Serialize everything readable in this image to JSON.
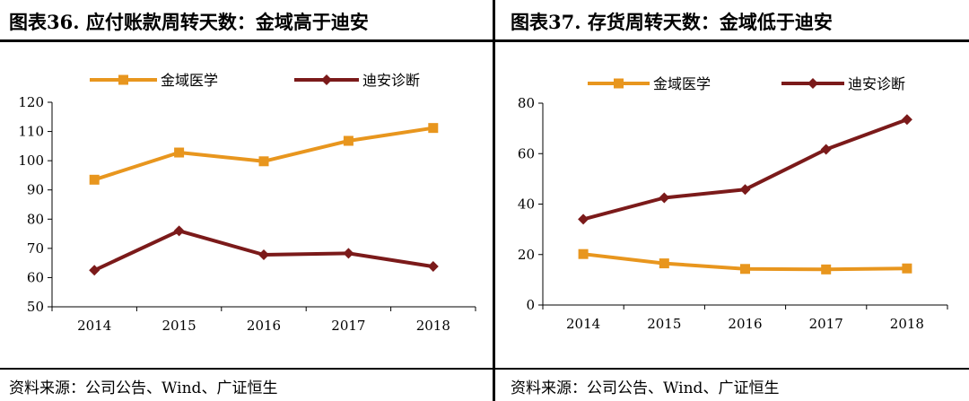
{
  "colors": {
    "orange": "#E8961E",
    "darkred": "#7B1A1A",
    "rule": "#000000"
  },
  "source": "资料来源：公司公告、Wind、广证恒生",
  "chart_data": [
    {
      "panel": "left",
      "type": "line",
      "title": "图表36.  应付账款周转天数：金域高于迪安",
      "categories": [
        "2014",
        "2015",
        "2016",
        "2017",
        "2018"
      ],
      "ylim": [
        50,
        120
      ],
      "yticks": [
        50,
        60,
        70,
        80,
        90,
        100,
        110,
        120
      ],
      "series": [
        {
          "name": "金域医学",
          "marker": "square",
          "color": "#E8961E",
          "values": [
            93.5,
            102.8,
            99.8,
            106.8,
            111.2
          ]
        },
        {
          "name": "迪安诊断",
          "marker": "diamond",
          "color": "#7B1A1A",
          "values": [
            62.5,
            76.0,
            67.8,
            68.3,
            63.8
          ]
        }
      ],
      "legend": "top",
      "grid": false
    },
    {
      "panel": "right",
      "type": "line",
      "title": "图表37.  存货周转天数：金域低于迪安",
      "categories": [
        "2014",
        "2015",
        "2016",
        "2017",
        "2018"
      ],
      "ylim": [
        0,
        80
      ],
      "yticks": [
        0,
        20,
        40,
        60,
        80
      ],
      "series": [
        {
          "name": "金域医学",
          "marker": "square",
          "color": "#E8961E",
          "values": [
            20.2,
            16.5,
            14.3,
            14.1,
            14.5
          ]
        },
        {
          "name": "迪安诊断",
          "marker": "diamond",
          "color": "#7B1A1A",
          "values": [
            34.0,
            42.5,
            45.8,
            61.7,
            73.5
          ]
        }
      ],
      "legend": "top",
      "grid": false
    }
  ]
}
